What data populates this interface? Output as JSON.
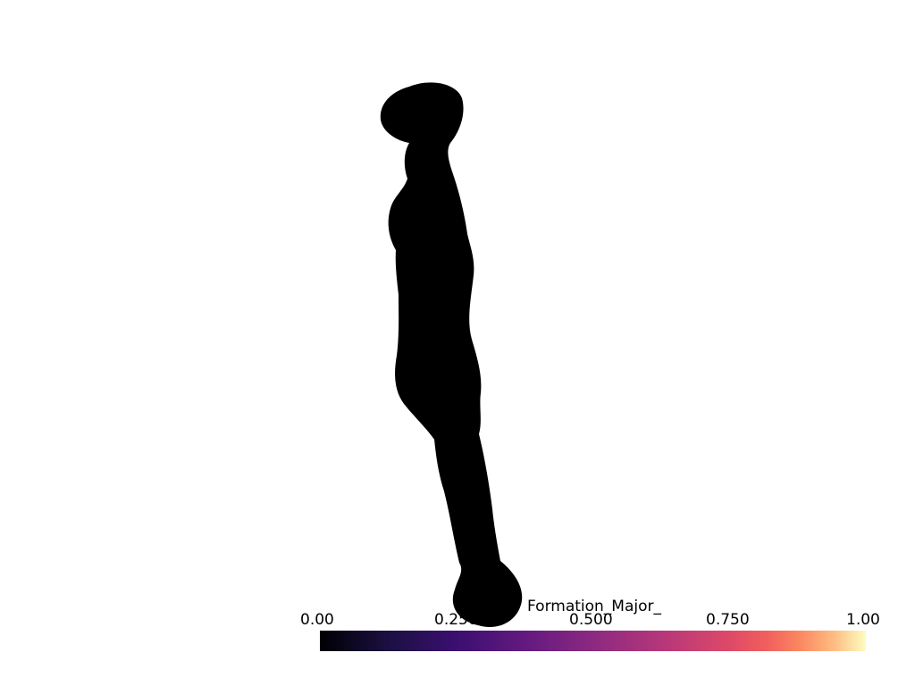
{
  "scene": {
    "background_color": "#ffffff",
    "mesh_color": "#000000"
  },
  "scalar_bar": {
    "title": "Formation_Major_",
    "ticks": [
      {
        "value": 0.0,
        "label": "0.00"
      },
      {
        "value": 0.25,
        "label": "0.250"
      },
      {
        "value": 0.5,
        "label": "0.500"
      },
      {
        "value": 0.75,
        "label": "0.750"
      },
      {
        "value": 1.0,
        "label": "1.00"
      }
    ],
    "range": [
      0.0,
      1.0
    ],
    "colormap": "magma",
    "colormap_stops": [
      {
        "pos": 0.0,
        "color": "#000004"
      },
      {
        "pos": 0.13,
        "color": "#1c1044"
      },
      {
        "pos": 0.25,
        "color": "#3b0f70"
      },
      {
        "pos": 0.38,
        "color": "#641a80"
      },
      {
        "pos": 0.5,
        "color": "#8c2981"
      },
      {
        "pos": 0.63,
        "color": "#b73779"
      },
      {
        "pos": 0.75,
        "color": "#de4968"
      },
      {
        "pos": 0.82,
        "color": "#f1605d"
      },
      {
        "pos": 0.88,
        "color": "#fb8861"
      },
      {
        "pos": 0.94,
        "color": "#febb81"
      },
      {
        "pos": 1.0,
        "color": "#fcfdbf"
      }
    ]
  }
}
